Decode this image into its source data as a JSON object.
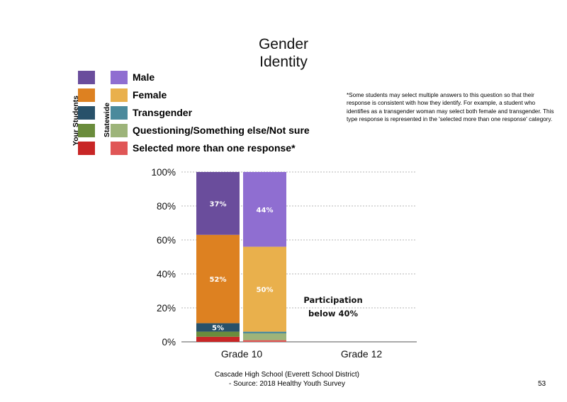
{
  "page": {
    "title_line1": "Gender",
    "title_line2": "Identity",
    "footer_line1": "Cascade High School (Everett School District)",
    "footer_line2": "- Source: 2018 Healthy  Youth Survey",
    "page_number": "53",
    "note": "*Some students may select multiple answers to this question so that their response is consistent with how they identify. For example, a student who identifies as a transgender woman may select both female and transgender. This type response is represented in the 'selected more than one response' category."
  },
  "legend": {
    "group_your": "Your Students",
    "group_state": "Statewide",
    "items": [
      {
        "label": "Male",
        "your_color": "#6a4d9c",
        "state_color": "#8f6ed1"
      },
      {
        "label": "Female",
        "your_color": "#dd8121",
        "state_color": "#e9b04c"
      },
      {
        "label": "Transgender",
        "your_color": "#28516a",
        "state_color": "#4b8a9c"
      },
      {
        "label": "Questioning/Something else/Not sure",
        "your_color": "#6a8c3c",
        "state_color": "#9db47a"
      },
      {
        "label": "Selected more than one response*",
        "your_color": "#c82626",
        "state_color": "#e05656"
      }
    ]
  },
  "chart_data": {
    "type": "bar",
    "stacked": true,
    "categories": [
      "Grade 10",
      "Grade 12"
    ],
    "yticks": [
      "0%",
      "20%",
      "40%",
      "60%",
      "80%",
      "100%"
    ],
    "ylim": [
      0,
      100
    ],
    "grid": true,
    "series_order": [
      "Selected more than one response*",
      "Questioning/Something else/Not sure",
      "Transgender",
      "Female",
      "Male"
    ],
    "bars": [
      {
        "category": "Grade 10",
        "group": "Your Students",
        "segments": [
          {
            "name": "Selected more than one response*",
            "value": 3,
            "label": ""
          },
          {
            "name": "Questioning/Something else/Not sure",
            "value": 3,
            "label": ""
          },
          {
            "name": "Transgender",
            "value": 5,
            "label": "5%"
          },
          {
            "name": "Female",
            "value": 52,
            "label": "52%"
          },
          {
            "name": "Male",
            "value": 37,
            "label": "37%"
          }
        ]
      },
      {
        "category": "Grade 10",
        "group": "Statewide",
        "segments": [
          {
            "name": "Selected more than one response*",
            "value": 1,
            "label": ""
          },
          {
            "name": "Questioning/Something else/Not sure",
            "value": 4,
            "label": ""
          },
          {
            "name": "Transgender",
            "value": 1,
            "label": ""
          },
          {
            "name": "Female",
            "value": 50,
            "label": "50%"
          },
          {
            "name": "Male",
            "value": 44,
            "label": "44%"
          }
        ]
      }
    ],
    "annotations": [
      {
        "category": "Grade 12",
        "line1": "Participation",
        "line2": "below 40%"
      }
    ]
  }
}
